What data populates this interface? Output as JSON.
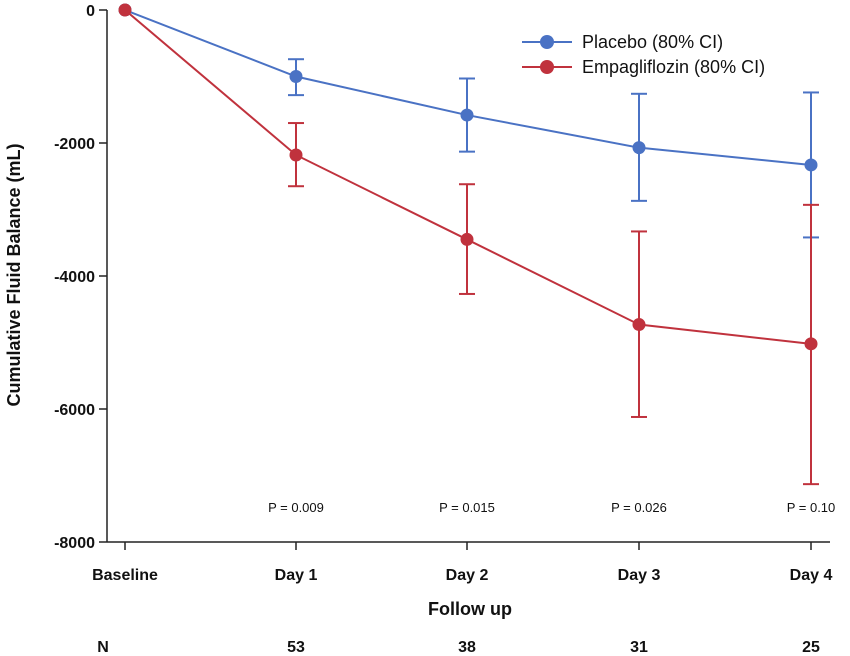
{
  "chart_data": {
    "type": "line",
    "categories": [
      "Baseline",
      "Day 1",
      "Day 2",
      "Day 3",
      "Day 4"
    ],
    "xlabel": "Follow up",
    "ylabel": "Cumulative Fluid Balance (mL)",
    "ylim": [
      -8000,
      0
    ],
    "yticks": [
      0,
      -2000,
      -4000,
      -6000,
      -8000
    ],
    "grid": false,
    "legend_position": "top-right",
    "series": [
      {
        "name": "Placebo (80% CI)",
        "color": "#4a72c4",
        "values": [
          0,
          -1000,
          -1580,
          -2070,
          -2330
        ],
        "ci_low": [
          null,
          -1280,
          -2130,
          -2870,
          -3420
        ],
        "ci_high": [
          null,
          -740,
          -1030,
          -1260,
          -1240
        ]
      },
      {
        "name": "Empagliflozin (80% CI)",
        "color": "#c0323d",
        "values": [
          0,
          -2180,
          -3450,
          -4730,
          -5020
        ],
        "ci_low": [
          null,
          -2650,
          -4270,
          -6120,
          -7130
        ],
        "ci_high": [
          null,
          -1700,
          -2620,
          -3330,
          -2930
        ]
      }
    ],
    "annotations": [
      {
        "category": "Day 1",
        "text": "P = 0.009"
      },
      {
        "category": "Day 2",
        "text": "P = 0.015"
      },
      {
        "category": "Day 3",
        "text": "P = 0.026"
      },
      {
        "category": "Day 4",
        "text": "P = 0.10"
      }
    ],
    "n_row": {
      "label": "N",
      "values": [
        {
          "category": "Day 1",
          "text": "53"
        },
        {
          "category": "Day 2",
          "text": "38"
        },
        {
          "category": "Day 3",
          "text": "31"
        },
        {
          "category": "Day 4",
          "text": "25"
        }
      ]
    }
  }
}
